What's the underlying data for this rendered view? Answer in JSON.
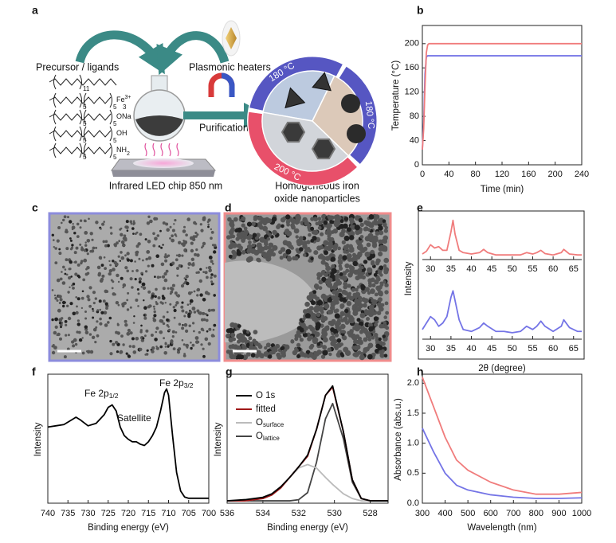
{
  "panel_labels": [
    "a",
    "b",
    "c",
    "d",
    "e",
    "f",
    "g",
    "h"
  ],
  "scheme": {
    "precursor": "Precursor / ligands",
    "heaters": "Plasmonic heaters",
    "purification": "Purification",
    "led": "Infrared LED chip 850 nm",
    "product": [
      "Homogeneous iron",
      "oxide nanoparticles"
    ],
    "ring": [
      "180 °C",
      "180 °C",
      "200 °C"
    ],
    "ligands": [
      {
        "subs": [
          "11"
        ]
      },
      {
        "subs": [
          "5",
          "5",
          "3"
        ],
        "end": "Fe",
        "end_sup": "3+"
      },
      {
        "subs": [
          "5",
          "5"
        ],
        "end": "ONa"
      },
      {
        "subs": [
          "5",
          "5"
        ],
        "end": "OH"
      },
      {
        "subs": [
          "5",
          "5"
        ],
        "end": "NH",
        "end_sub": "2"
      }
    ]
  },
  "chart_data": [
    {
      "type": "line",
      "xlabel": "Time (min)",
      "ylabel": "Temperature (°C)",
      "xlim": [
        0,
        240
      ],
      "xticks": [
        0,
        40,
        80,
        120,
        160,
        200,
        240
      ],
      "ylim": [
        0,
        230
      ],
      "yticks": [
        0,
        40,
        80,
        120,
        160,
        200
      ],
      "x": [
        0,
        2,
        4,
        6,
        8,
        10,
        20,
        60,
        120,
        180,
        240
      ],
      "series": [
        {
          "color": "#f07c7c",
          "values": [
            25,
            60,
            130,
            185,
            198,
            200,
            200,
            200,
            200,
            200,
            200
          ]
        },
        {
          "color": "#7474e6",
          "values": [
            25,
            70,
            150,
            178,
            180,
            180,
            180,
            180,
            180,
            180,
            180
          ]
        }
      ]
    },
    {
      "type": "line",
      "ylabel": "Intensity",
      "xlim": [
        28,
        67
      ],
      "xticks": [
        30,
        35,
        40,
        45,
        50,
        55,
        60,
        65
      ],
      "ylim": [
        0,
        1
      ],
      "x": [
        28,
        29,
        30,
        31,
        32,
        33,
        34,
        35,
        35.5,
        36,
        37,
        38,
        40,
        42,
        43,
        44,
        46,
        48,
        50,
        52,
        53.5,
        55,
        56,
        57,
        58,
        60,
        62,
        62.6,
        64,
        66,
        67
      ],
      "series": [
        {
          "color": "#f07c7c",
          "values": [
            0.12,
            0.18,
            0.32,
            0.25,
            0.28,
            0.2,
            0.2,
            0.6,
            0.85,
            0.55,
            0.2,
            0.15,
            0.12,
            0.15,
            0.22,
            0.15,
            0.1,
            0.1,
            0.1,
            0.1,
            0.15,
            0.12,
            0.15,
            0.2,
            0.13,
            0.1,
            0.15,
            0.22,
            0.12,
            0.1,
            0.1
          ]
        }
      ]
    },
    {
      "type": "line",
      "xlabel": "2θ (degree)",
      "xlim": [
        28,
        67
      ],
      "xticks": [
        30,
        35,
        40,
        45,
        50,
        55,
        60,
        65
      ],
      "ylim": [
        0,
        1
      ],
      "x": [
        28,
        29,
        30,
        31,
        32,
        33,
        34,
        35,
        35.5,
        36,
        37,
        38,
        40,
        42,
        43,
        44,
        46,
        48,
        50,
        52,
        53.5,
        55,
        56,
        57,
        58,
        60,
        62,
        62.6,
        64,
        66,
        67
      ],
      "series": [
        {
          "color": "#7474e6",
          "values": [
            0.15,
            0.25,
            0.35,
            0.3,
            0.2,
            0.25,
            0.35,
            0.65,
            0.75,
            0.6,
            0.3,
            0.15,
            0.12,
            0.18,
            0.25,
            0.2,
            0.12,
            0.12,
            0.1,
            0.12,
            0.2,
            0.15,
            0.2,
            0.28,
            0.2,
            0.12,
            0.2,
            0.3,
            0.18,
            0.12,
            0.12
          ]
        }
      ]
    },
    {
      "type": "line",
      "xlabel": "Binding  energy (eV)",
      "ylabel": "Intensity",
      "xlim": [
        740,
        700
      ],
      "xticks": [
        740,
        735,
        730,
        725,
        720,
        715,
        710,
        705,
        700
      ],
      "ylim": [
        0,
        1.05
      ],
      "x": [
        740,
        738,
        736,
        734,
        733,
        732,
        730,
        728,
        726,
        725,
        724,
        723,
        722,
        721,
        720,
        719,
        718,
        717,
        716,
        715,
        714,
        713,
        712,
        711,
        710.5,
        710,
        709,
        708,
        707,
        706,
        705,
        704,
        702,
        700
      ],
      "series": [
        {
          "color": "#000000",
          "values": [
            0.62,
            0.63,
            0.64,
            0.68,
            0.7,
            0.68,
            0.63,
            0.65,
            0.72,
            0.78,
            0.8,
            0.75,
            0.62,
            0.55,
            0.52,
            0.5,
            0.5,
            0.48,
            0.47,
            0.5,
            0.55,
            0.62,
            0.75,
            0.9,
            0.93,
            0.88,
            0.55,
            0.25,
            0.1,
            0.05,
            0.04,
            0.04,
            0.04,
            0.04
          ]
        }
      ],
      "annotations": [
        {
          "text": "Fe 2p",
          "sub": "1/2"
        },
        {
          "text": "Satellite"
        },
        {
          "text": "Fe 2p",
          "sub": "3/2"
        }
      ]
    },
    {
      "type": "line",
      "xlabel": "Binding energy (eV)",
      "ylabel": "Intensity",
      "xlim": [
        536,
        527
      ],
      "xticks": [
        536,
        534,
        532,
        530,
        528
      ],
      "ylim": [
        0,
        1.1
      ],
      "legend": "upper left",
      "x": [
        536,
        535,
        534,
        533.5,
        533,
        532.5,
        532,
        531.5,
        531,
        530.5,
        530.1,
        529.5,
        529,
        528.5,
        528,
        527
      ],
      "series": [
        {
          "name": "O 1s",
          "color": "#000000",
          "values": [
            0.02,
            0.03,
            0.05,
            0.08,
            0.14,
            0.22,
            0.31,
            0.41,
            0.63,
            0.92,
            1.0,
            0.61,
            0.2,
            0.04,
            0.02,
            0.02
          ]
        },
        {
          "name": "fitted",
          "color": "#a01818",
          "values": [
            0.02,
            0.02,
            0.04,
            0.07,
            0.13,
            0.22,
            0.31,
            0.4,
            0.63,
            0.92,
            0.99,
            0.61,
            0.2,
            0.04,
            0.02,
            0.02
          ]
        },
        {
          "name": "O",
          "name_sub": "surface",
          "color": "#bbbbbb",
          "values": [
            0.02,
            0.02,
            0.04,
            0.07,
            0.13,
            0.22,
            0.3,
            0.33,
            0.3,
            0.22,
            0.16,
            0.08,
            0.04,
            0.02,
            0.02,
            0.02
          ]
        },
        {
          "name": "O",
          "name_sub": "lattice",
          "color": "#444444",
          "values": [
            0.02,
            0.02,
            0.02,
            0.02,
            0.02,
            0.02,
            0.03,
            0.09,
            0.35,
            0.72,
            0.85,
            0.55,
            0.18,
            0.04,
            0.02,
            0.02
          ]
        }
      ]
    },
    {
      "type": "line",
      "xlabel": "Wavelength (nm)",
      "ylabel": "Absorbance (abs.u.)",
      "xlim": [
        300,
        1000
      ],
      "xticks": [
        300,
        400,
        500,
        600,
        700,
        800,
        900,
        1000
      ],
      "ylim": [
        0,
        2.15
      ],
      "yticks": [
        {
          "value": 0,
          "label": "0.0"
        },
        0.5,
        {
          "value": 1,
          "label": "1.0"
        },
        1.5,
        {
          "value": 2,
          "label": "2.0"
        }
      ],
      "x": [
        300,
        350,
        400,
        450,
        500,
        600,
        700,
        800,
        900,
        1000
      ],
      "series": [
        {
          "color": "#f07c7c",
          "values": [
            2.1,
            1.6,
            1.1,
            0.72,
            0.55,
            0.35,
            0.22,
            0.15,
            0.15,
            0.18
          ]
        },
        {
          "color": "#7474e6",
          "values": [
            1.25,
            0.85,
            0.5,
            0.3,
            0.22,
            0.14,
            0.1,
            0.08,
            0.08,
            0.09
          ]
        }
      ]
    }
  ]
}
